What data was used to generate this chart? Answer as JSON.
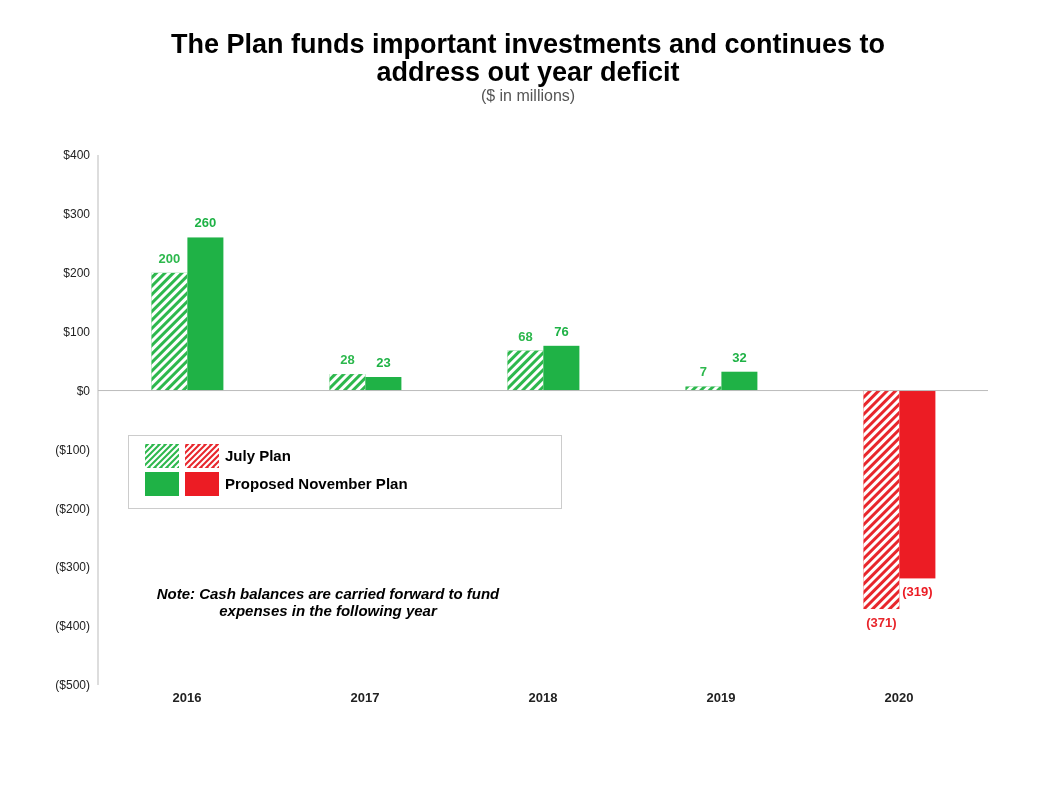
{
  "chart_data": {
    "type": "bar",
    "title": "The Plan funds important investments and continues to address out year deficit",
    "subtitle": "($ in millions)",
    "categories": [
      "2016",
      "2017",
      "2018",
      "2019",
      "2020"
    ],
    "series": [
      {
        "name": "July Plan",
        "colors": [
          "#2db84d",
          "#2db84d",
          "#2db84d",
          "#2db84d",
          "#e8262c"
        ],
        "values": [
          200,
          28,
          68,
          7,
          -371
        ],
        "value_labels": [
          "200",
          "28",
          "68",
          "7",
          "(371)"
        ]
      },
      {
        "name": "Proposed November Plan",
        "colors": [
          "#1fb246",
          "#1fb246",
          "#1fb246",
          "#1fb246",
          "#ec1c24"
        ],
        "values": [
          260,
          23,
          76,
          32,
          -319
        ],
        "value_labels": [
          "260",
          "23",
          "76",
          "32",
          "(319)"
        ]
      }
    ],
    "ylim": [
      -500,
      400
    ],
    "yticks": [
      {
        "value": 400,
        "label": "$400"
      },
      {
        "value": 300,
        "label": "$300"
      },
      {
        "value": 200,
        "label": "$200"
      },
      {
        "value": 100,
        "label": "$100"
      },
      {
        "value": 0,
        "label": "$0"
      },
      {
        "value": -100,
        "label": "($100)"
      },
      {
        "value": -200,
        "label": "($200)"
      },
      {
        "value": -300,
        "label": "($300)"
      },
      {
        "value": -400,
        "label": "($400)"
      },
      {
        "value": -500,
        "label": "($500)"
      }
    ],
    "grid": false,
    "legend": "left",
    "ref_lines": [
      {
        "axis": "y",
        "value": 0,
        "color": "#bbbbbb"
      }
    ],
    "annotations": [
      "Note: Cash balances are carried forward to fund expenses in the following year"
    ]
  }
}
